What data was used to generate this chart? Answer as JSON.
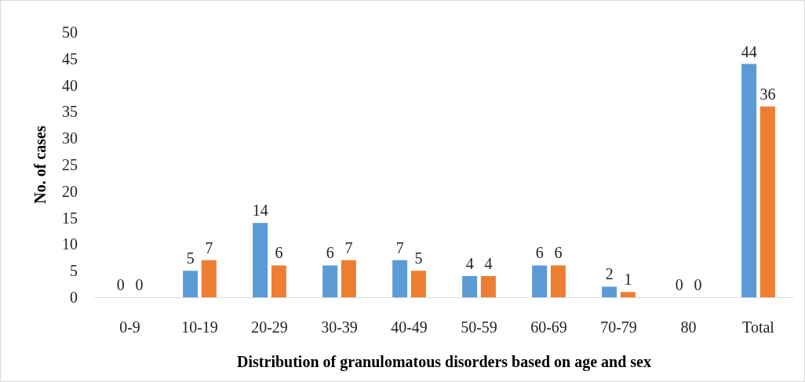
{
  "chart_data": {
    "type": "bar",
    "xlabel": "Distribution of granulomatous disorders based on age and sex",
    "ylabel": "No. of cases",
    "categories": [
      "0-9",
      "10-19",
      "20-29",
      "30-39",
      "40-49",
      "50-59",
      "60-69",
      "70-79",
      "80",
      "Total"
    ],
    "series": [
      {
        "color": "#5b9bd5",
        "values": [
          0,
          5,
          14,
          6,
          7,
          4,
          6,
          2,
          0,
          44
        ]
      },
      {
        "color": "#ed7d31",
        "values": [
          0,
          7,
          6,
          7,
          5,
          4,
          6,
          1,
          0,
          36
        ]
      }
    ],
    "ylim": [
      0,
      50
    ],
    "yticks": [
      0,
      5,
      10,
      15,
      20,
      25,
      30,
      35,
      40,
      45,
      50
    ],
    "grid": false,
    "data_labels": true
  }
}
